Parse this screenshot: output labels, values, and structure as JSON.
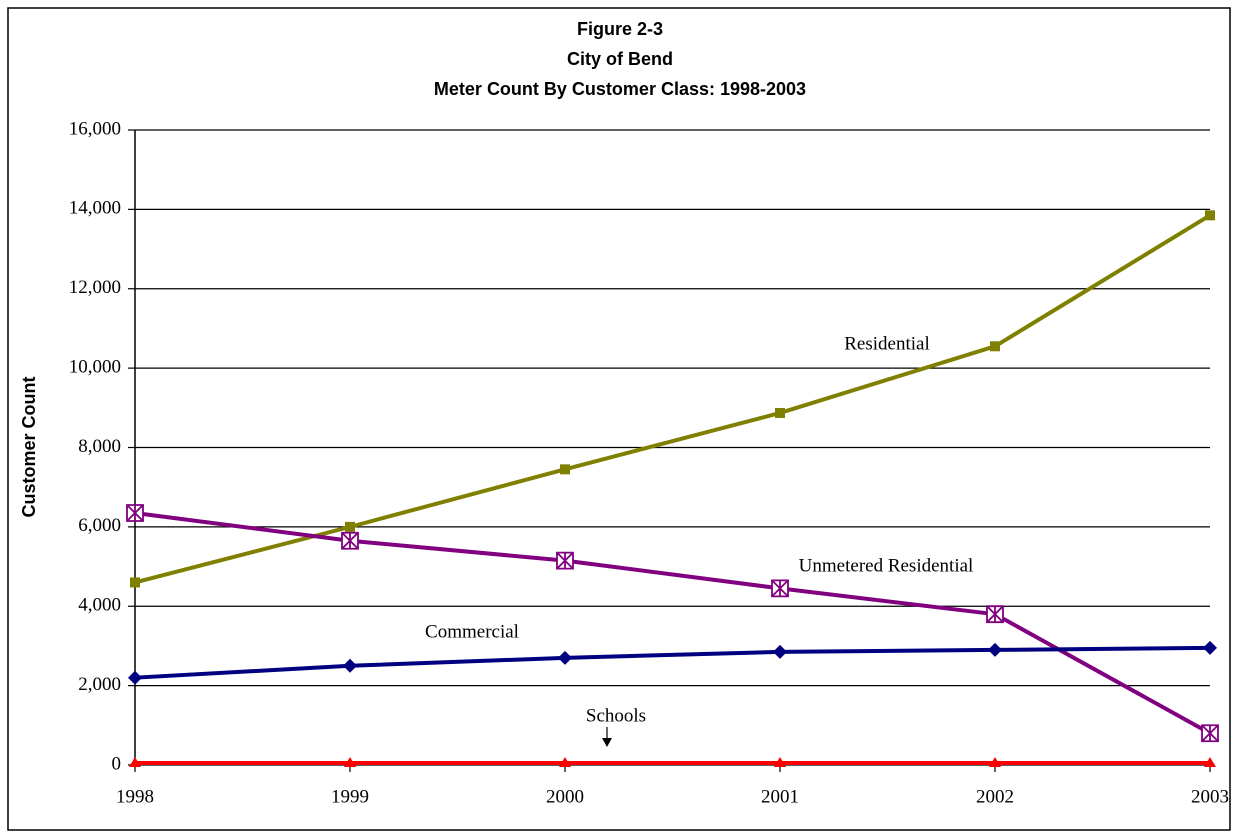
{
  "chart_data": {
    "type": "line",
    "title": [
      "Figure 2-3",
      "City of Bend",
      "Meter Count By Customer Class:  1998-2003"
    ],
    "y_label": "Customer Count",
    "categories": [
      "1998",
      "1999",
      "2000",
      "2001",
      "2002",
      "2003"
    ],
    "series": [
      {
        "name": "Residential",
        "color": "#808000",
        "marker": "square",
        "values": [
          4600,
          6000,
          7450,
          8870,
          10550,
          13850
        ]
      },
      {
        "name": "Unmetered Residential",
        "color": "#800080",
        "marker": "square-x",
        "values": [
          6350,
          5650,
          5150,
          4450,
          3800,
          800
        ]
      },
      {
        "name": "Commercial",
        "color": "#000080",
        "marker": "diamond",
        "values": [
          2200,
          2500,
          2700,
          2850,
          2900,
          2950
        ]
      },
      {
        "name": "Schools",
        "color": "#ff0000",
        "marker": "triangle",
        "values": [
          50,
          50,
          50,
          50,
          50,
          50
        ]
      }
    ],
    "ylim": [
      0,
      16000
    ],
    "yticks": [
      0,
      {
        "value": 2000,
        "label": "2,000"
      },
      {
        "value": 4000,
        "label": "4,000"
      },
      {
        "value": 6000,
        "label": "6,000"
      },
      {
        "value": 8000,
        "label": "8,000"
      },
      {
        "value": 10000,
        "label": "10,000"
      },
      {
        "value": 12000,
        "label": "12,000"
      },
      {
        "value": 14000,
        "label": "14,000"
      },
      {
        "value": 16000,
        "label": "16,000"
      }
    ],
    "grid": true
  }
}
